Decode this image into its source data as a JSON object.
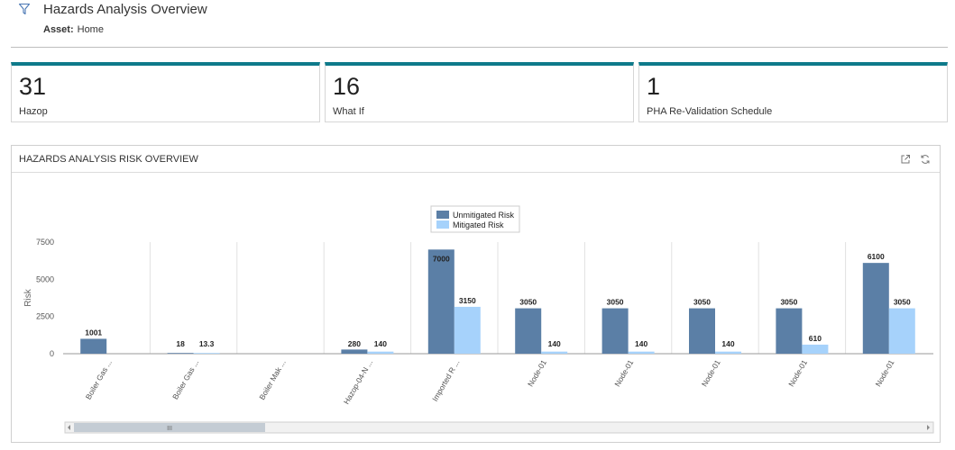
{
  "header": {
    "title": "Hazards Analysis Overview",
    "asset_label": "Asset:",
    "asset_value": "Home",
    "filter_icon": "filter-icon"
  },
  "kpis": [
    {
      "value": "31",
      "label": "Hazop"
    },
    {
      "value": "16",
      "label": "What If"
    },
    {
      "value": "1",
      "label": "PHA Re-Validation Schedule"
    }
  ],
  "colors": {
    "accent": "#0e7a8a",
    "unmitigated": "#5b7fa6",
    "mitigated": "#a6d2fb"
  },
  "panel": {
    "title": "HAZARDS ANALYSIS RISK OVERVIEW",
    "icons": [
      "external-link-icon",
      "refresh-icon"
    ]
  },
  "chart_data": {
    "type": "bar",
    "ylabel": "Risk",
    "ylim": [
      0,
      7500
    ],
    "yticks": [
      0,
      2500,
      5000,
      7500
    ],
    "grid": "vertical separators",
    "legend_position": "top-center",
    "categories": [
      "Boiler Gas ...",
      "Boiler Gas ...",
      "Boiler Mak ...",
      "Hazop-04-N ...",
      "Imported R ...",
      "Node-01",
      "Node-01",
      "Node-01",
      "Node-01",
      "Node-01"
    ],
    "series": [
      {
        "name": "Unmitigated Risk",
        "values": [
          1001,
          18,
          null,
          280,
          7000,
          3050,
          3050,
          3050,
          3050,
          6100
        ],
        "labels": [
          "1001",
          "18",
          "",
          "280",
          "7000",
          "3050",
          "3050",
          "3050",
          "3050",
          "6100"
        ]
      },
      {
        "name": "Mitigated Risk",
        "values": [
          null,
          13.3,
          null,
          140,
          3150,
          140,
          140,
          140,
          610,
          3050
        ],
        "labels": [
          "",
          "13.3",
          "",
          "140",
          "3150",
          "140",
          "140",
          "140",
          "610",
          "3050"
        ]
      }
    ],
    "scrollbar_thumb_label": "III"
  }
}
